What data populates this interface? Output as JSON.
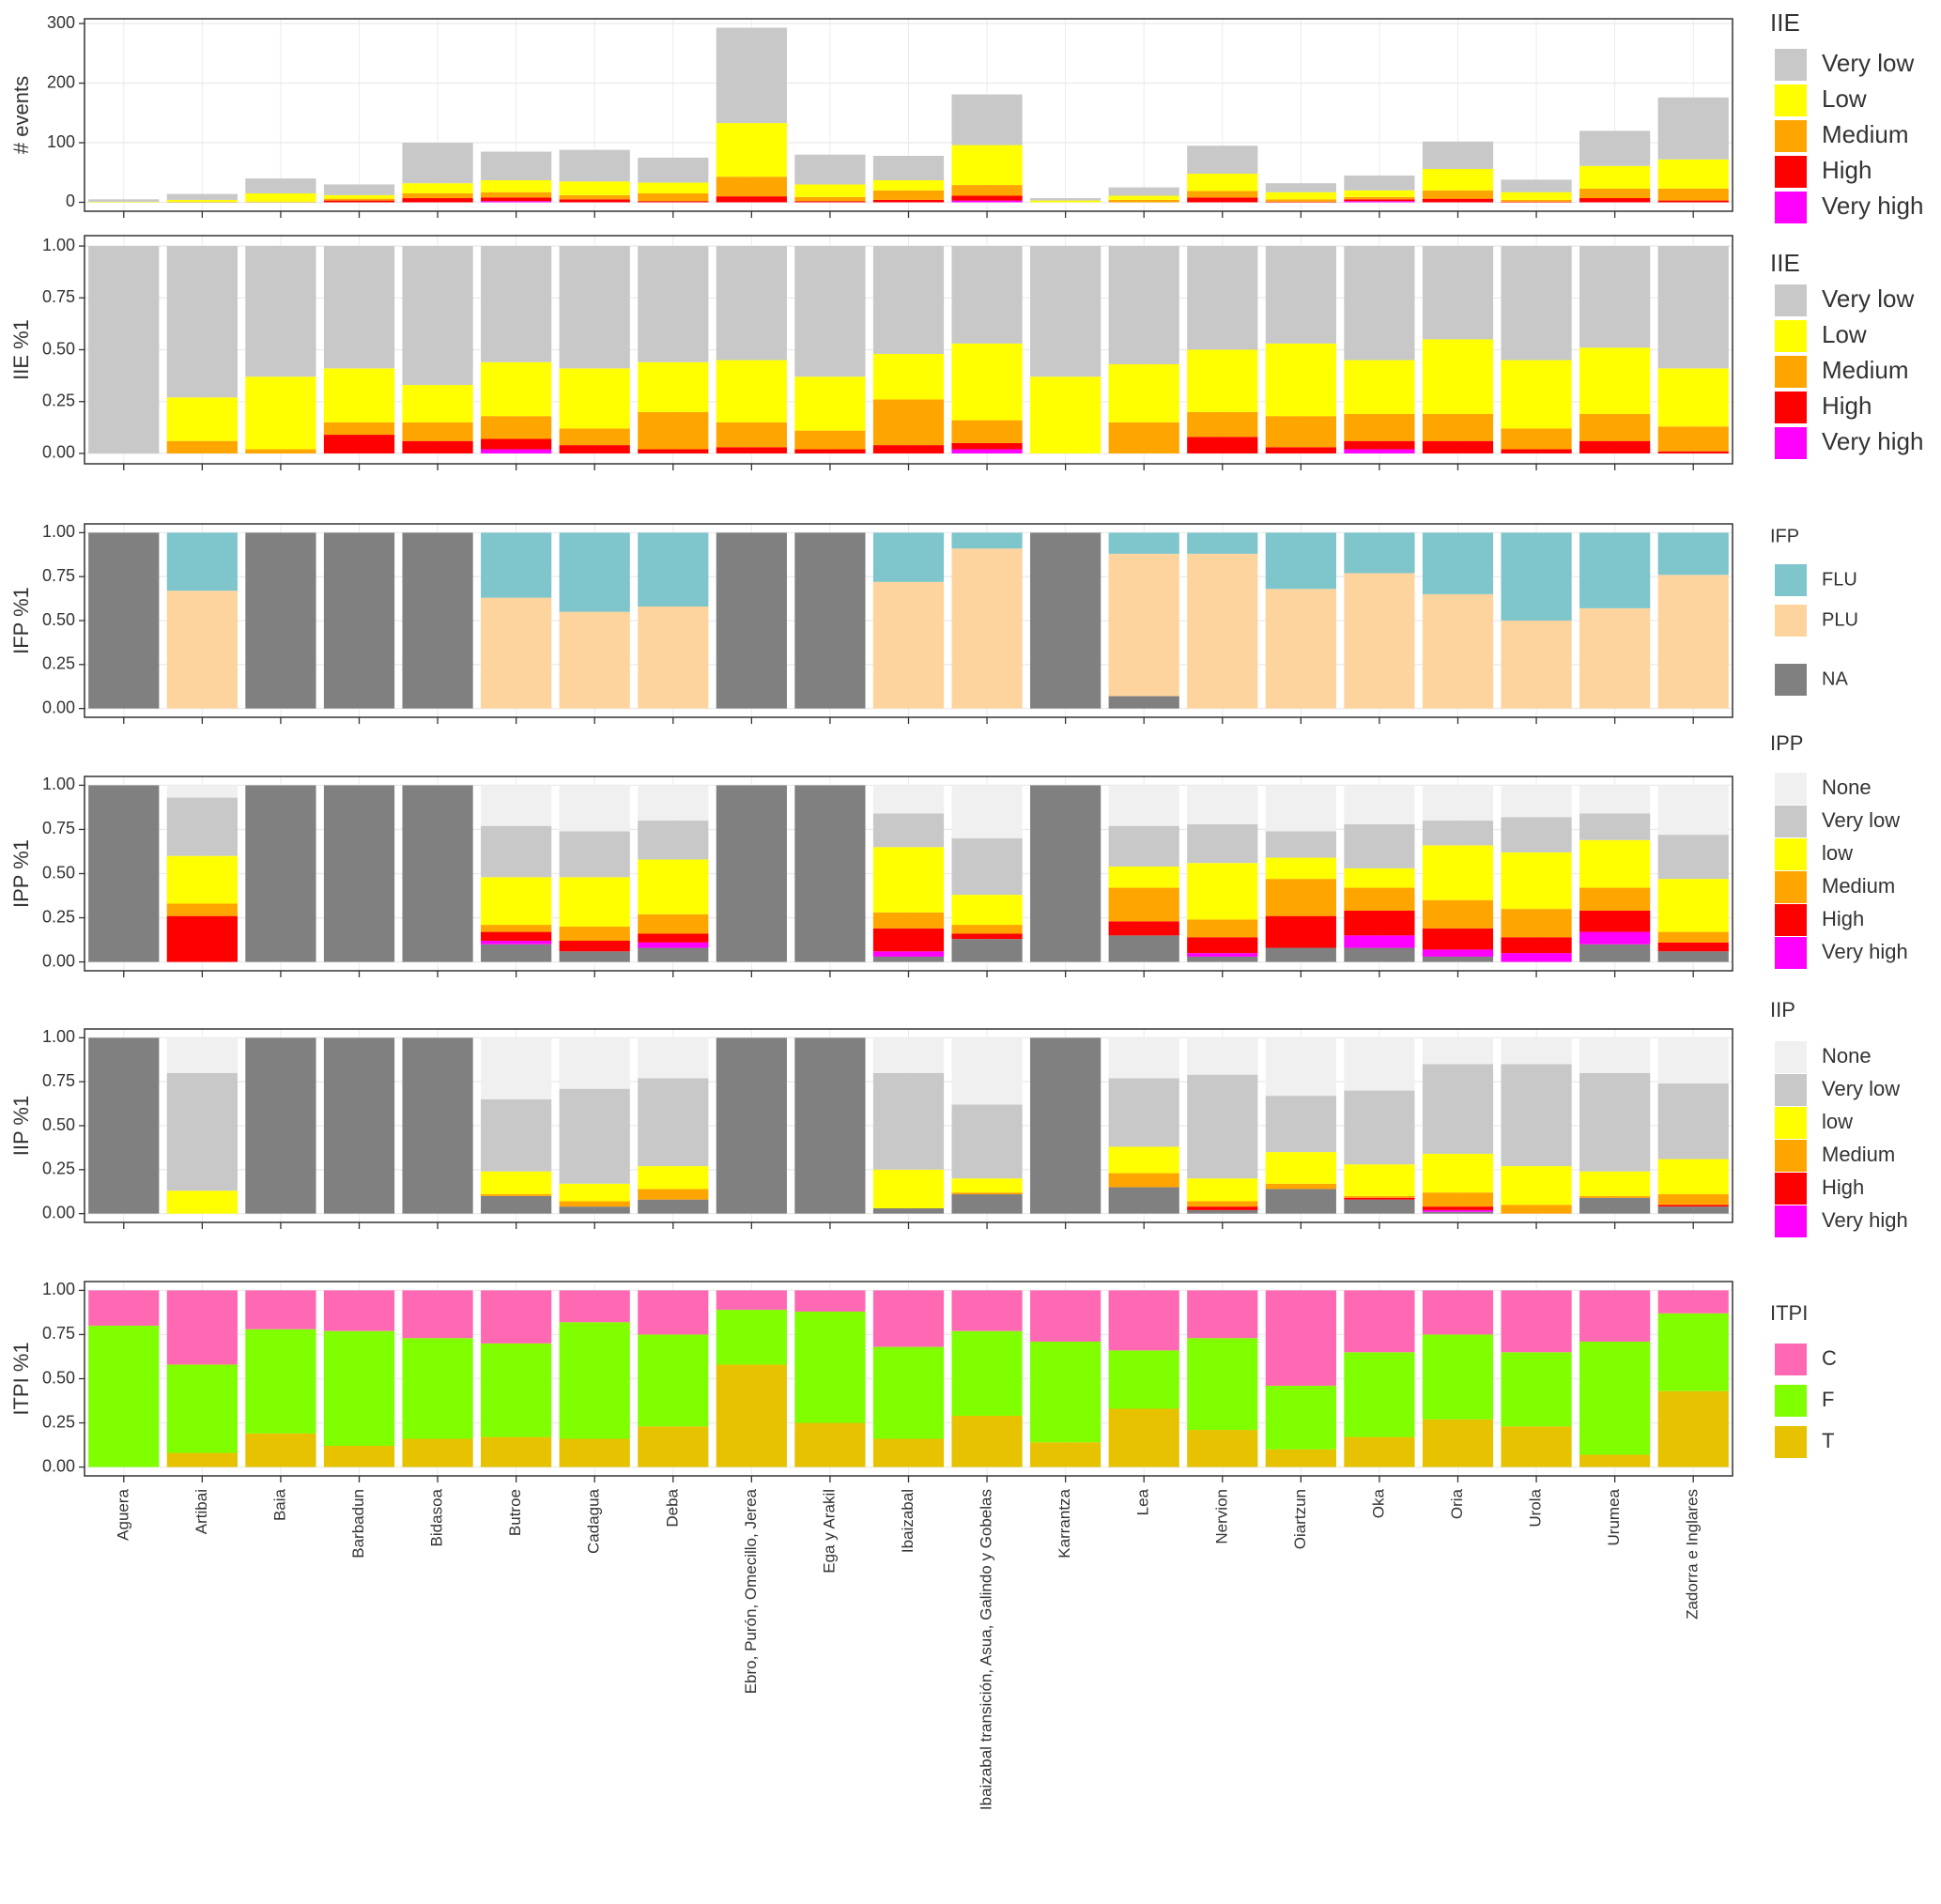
{
  "chart_data": [
    {
      "type": "bar",
      "stacked": true,
      "ylabel": "# events",
      "legend_title": "IIE",
      "grid": true,
      "ylim": [
        -15,
        308
      ],
      "yticks": [
        0,
        100,
        200,
        300
      ],
      "series": [
        {
          "name": "Very low",
          "color": "#c8c8c8",
          "values": [
            4,
            10,
            25,
            18,
            68,
            48,
            53,
            42,
            160,
            50,
            41,
            85,
            4,
            14,
            47,
            15,
            25,
            46,
            21,
            59,
            104
          ]
        },
        {
          "name": "Low",
          "color": "#ffff00",
          "values": [
            1,
            3,
            14,
            6,
            17,
            20,
            23,
            18,
            90,
            21,
            17,
            67,
            3,
            7,
            29,
            12,
            11,
            36,
            13,
            38,
            49
          ]
        },
        {
          "name": "Medium",
          "color": "#ffa500",
          "values": [
            0,
            1,
            1,
            3,
            8,
            9,
            7,
            13,
            33,
            7,
            16,
            18,
            0,
            4,
            11,
            4,
            4,
            14,
            3,
            16,
            20
          ]
        },
        {
          "name": "High",
          "color": "#ff0000",
          "values": [
            0,
            0,
            0,
            3,
            7,
            6,
            5,
            2,
            10,
            2,
            4,
            8,
            0,
            0,
            8,
            1,
            3,
            6,
            1,
            7,
            3
          ]
        },
        {
          "name": "Very high",
          "color": "#ff00ff",
          "values": [
            0,
            0,
            0,
            0,
            0,
            2,
            0,
            0,
            0,
            0,
            0,
            3,
            0,
            0,
            0,
            0,
            2,
            0,
            0,
            0,
            0
          ]
        }
      ]
    },
    {
      "type": "bar",
      "stacked": true,
      "ylabel": "IIE %1",
      "legend_title": "IIE",
      "grid": true,
      "ylim": [
        -0.05,
        1.05
      ],
      "yticks": [
        {
          "value": 0,
          "label": "0.00"
        },
        {
          "value": 0.25,
          "label": "0.25"
        },
        {
          "value": 0.5,
          "label": "0.50"
        },
        {
          "value": 0.75,
          "label": "0.75"
        },
        {
          "value": 1,
          "label": "1.00"
        }
      ],
      "series": [
        {
          "name": "Very low",
          "color": "#c8c8c8",
          "values": [
            1,
            0.73,
            0.63,
            0.59,
            0.67,
            0.56,
            0.59,
            0.56,
            0.55,
            0.63,
            0.52,
            0.47,
            0.63,
            0.57,
            0.5,
            0.47,
            0.55,
            0.45,
            0.55,
            0.49,
            0.59
          ]
        },
        {
          "name": "Low",
          "color": "#ffff00",
          "values": [
            0,
            0.21,
            0.35,
            0.26,
            0.18,
            0.26,
            0.29,
            0.24,
            0.3,
            0.26,
            0.22,
            0.37,
            0.37,
            0.28,
            0.3,
            0.35,
            0.26,
            0.36,
            0.33,
            0.32,
            0.28
          ]
        },
        {
          "name": "Medium",
          "color": "#ffa500",
          "values": [
            0,
            0.06,
            0.02,
            0.06,
            0.09,
            0.11,
            0.08,
            0.18,
            0.12,
            0.09,
            0.22,
            0.11,
            0,
            0.15,
            0.12,
            0.15,
            0.13,
            0.13,
            0.1,
            0.13,
            0.12
          ]
        },
        {
          "name": "High",
          "color": "#ff0000",
          "values": [
            0,
            0,
            0,
            0.09,
            0.06,
            0.05,
            0.04,
            0.02,
            0.03,
            0.02,
            0.04,
            0.03,
            0,
            0,
            0.08,
            0.03,
            0.04,
            0.06,
            0.02,
            0.06,
            0.01
          ]
        },
        {
          "name": "Very high",
          "color": "#ff00ff",
          "values": [
            0,
            0,
            0,
            0,
            0,
            0.02,
            0,
            0,
            0,
            0,
            0,
            0.02,
            0,
            0,
            0,
            0,
            0.02,
            0,
            0,
            0,
            0
          ]
        }
      ]
    },
    {
      "type": "bar",
      "stacked": true,
      "ylabel": "IFP %1",
      "legend_title": "IFP",
      "grid": true,
      "ylim": [
        -0.05,
        1.05
      ],
      "yticks": [
        {
          "value": 0,
          "label": "0.00"
        },
        {
          "value": 0.25,
          "label": "0.25"
        },
        {
          "value": 0.5,
          "label": "0.50"
        },
        {
          "value": 0.75,
          "label": "0.75"
        },
        {
          "value": 1,
          "label": "1.00"
        }
      ],
      "series": [
        {
          "name": "FLU",
          "color": "#7ec6cc",
          "values": [
            0,
            0.33,
            0,
            0,
            0,
            0.37,
            0.45,
            0.42,
            0,
            0,
            0.28,
            0.09,
            0,
            0.12,
            0.12,
            0.32,
            0.23,
            0.35,
            0.5,
            0.43,
            0.24
          ]
        },
        {
          "name": "PLU",
          "color": "#fdd49e",
          "values": [
            0,
            0.67,
            0,
            0,
            0,
            0.63,
            0.55,
            0.58,
            0,
            0,
            0.72,
            0.91,
            0,
            0.81,
            0.88,
            0.68,
            0.77,
            0.65,
            0.5,
            0.57,
            0.76
          ]
        },
        {
          "name": "NA",
          "color": "#808080",
          "values": [
            1,
            0,
            1,
            1,
            1,
            0,
            0,
            0,
            1,
            1,
            0,
            0,
            1,
            0.07,
            0,
            0,
            0,
            0,
            0,
            0,
            0
          ]
        }
      ]
    },
    {
      "type": "bar",
      "stacked": true,
      "ylabel": "IPP %1",
      "legend_title": "IPP",
      "grid": true,
      "ylim": [
        -0.05,
        1.05
      ],
      "yticks": [
        {
          "value": 0,
          "label": "0.00"
        },
        {
          "value": 0.25,
          "label": "0.25"
        },
        {
          "value": 0.5,
          "label": "0.50"
        },
        {
          "value": 0.75,
          "label": "0.75"
        },
        {
          "value": 1,
          "label": "1.00"
        }
      ],
      "series": [
        {
          "name": "None",
          "color": "#f0f0f0",
          "values": [
            0,
            0.07,
            0,
            0,
            0,
            0.23,
            0.26,
            0.2,
            0,
            0,
            0.16,
            0.3,
            0,
            0.23,
            0.22,
            0.26,
            0.22,
            0.2,
            0.18,
            0.16,
            0.28
          ]
        },
        {
          "name": "Very low",
          "color": "#c8c8c8",
          "values": [
            0,
            0.33,
            0,
            0,
            0,
            0.29,
            0.26,
            0.22,
            0,
            0,
            0.19,
            0.32,
            0,
            0.23,
            0.22,
            0.15,
            0.25,
            0.14,
            0.2,
            0.15,
            0.25
          ]
        },
        {
          "name": "low",
          "color": "#ffff00",
          "values": [
            0,
            0.27,
            0,
            0,
            0,
            0.27,
            0.28,
            0.31,
            0,
            0,
            0.37,
            0.17,
            0,
            0.12,
            0.32,
            0.12,
            0.11,
            0.31,
            0.32,
            0.27,
            0.3
          ]
        },
        {
          "name": "Medium",
          "color": "#ffa500",
          "values": [
            0,
            0.07,
            0,
            0,
            0,
            0.04,
            0.08,
            0.11,
            0,
            0,
            0.09,
            0.05,
            0,
            0.19,
            0.1,
            0.21,
            0.13,
            0.16,
            0.16,
            0.13,
            0.06
          ]
        },
        {
          "name": "High",
          "color": "#ff0000",
          "values": [
            0,
            0.26,
            0,
            0,
            0,
            0.05,
            0.06,
            0.05,
            0,
            0,
            0.13,
            0.03,
            0,
            0.08,
            0.09,
            0.18,
            0.14,
            0.12,
            0.09,
            0.12,
            0.05
          ]
        },
        {
          "name": "Very high",
          "color": "#ff00ff",
          "values": [
            0,
            0,
            0,
            0,
            0,
            0.02,
            0,
            0.03,
            0,
            0,
            0.03,
            0,
            0,
            0,
            0.02,
            0,
            0.07,
            0.04,
            0.05,
            0.07,
            0
          ]
        },
        {
          "color": "#808080",
          "values": [
            1,
            0,
            1,
            1,
            1,
            0.1,
            0.06,
            0.08,
            1,
            1,
            0.03,
            0.13,
            1,
            0.15,
            0.03,
            0.08,
            0.08,
            0.03,
            0,
            0.1,
            0.06
          ]
        }
      ]
    },
    {
      "type": "bar",
      "stacked": true,
      "ylabel": "IIP %1",
      "legend_title": "IIP",
      "grid": true,
      "ylim": [
        -0.05,
        1.05
      ],
      "yticks": [
        {
          "value": 0,
          "label": "0.00"
        },
        {
          "value": 0.25,
          "label": "0.25"
        },
        {
          "value": 0.5,
          "label": "0.50"
        },
        {
          "value": 0.75,
          "label": "0.75"
        },
        {
          "value": 1,
          "label": "1.00"
        }
      ],
      "series": [
        {
          "name": "None",
          "color": "#f0f0f0",
          "values": [
            0,
            0.2,
            0,
            0,
            0,
            0.35,
            0.29,
            0.23,
            0,
            0,
            0.2,
            0.38,
            0,
            0.23,
            0.21,
            0.33,
            0.3,
            0.15,
            0.15,
            0.2,
            0.26
          ]
        },
        {
          "name": "Very low",
          "color": "#c8c8c8",
          "values": [
            0,
            0.67,
            0,
            0,
            0,
            0.41,
            0.54,
            0.5,
            0,
            0,
            0.55,
            0.42,
            0,
            0.39,
            0.59,
            0.32,
            0.42,
            0.51,
            0.58,
            0.56,
            0.43
          ]
        },
        {
          "name": "low",
          "color": "#ffff00",
          "values": [
            0,
            0.13,
            0,
            0,
            0,
            0.13,
            0.1,
            0.13,
            0,
            0,
            0.22,
            0.08,
            0,
            0.15,
            0.13,
            0.18,
            0.18,
            0.22,
            0.22,
            0.14,
            0.2
          ]
        },
        {
          "name": "Medium",
          "color": "#ffa500",
          "values": [
            0,
            0,
            0,
            0,
            0,
            0.01,
            0.03,
            0.06,
            0,
            0,
            0,
            0.01,
            0,
            0.08,
            0.03,
            0.03,
            0.01,
            0.08,
            0.05,
            0.01,
            0.06
          ]
        },
        {
          "name": "High",
          "color": "#ff0000",
          "values": [
            0,
            0,
            0,
            0,
            0,
            0,
            0,
            0,
            0,
            0,
            0,
            0,
            0,
            0,
            0.02,
            0,
            0.01,
            0.02,
            0,
            0,
            0.01
          ]
        },
        {
          "name": "Very high",
          "color": "#ff00ff",
          "values": [
            0,
            0,
            0,
            0,
            0,
            0,
            0,
            0,
            0,
            0,
            0,
            0,
            0,
            0,
            0,
            0,
            0,
            0.01,
            0,
            0,
            0
          ]
        },
        {
          "color": "#808080",
          "values": [
            1,
            0,
            1,
            1,
            1,
            0.1,
            0.04,
            0.08,
            1,
            1,
            0.03,
            0.11,
            1,
            0.15,
            0.02,
            0.14,
            0.08,
            0.01,
            0,
            0.09,
            0.04
          ]
        }
      ]
    },
    {
      "type": "bar",
      "stacked": true,
      "ylabel": "ITPI %1",
      "legend_title": "ITPI",
      "grid": true,
      "categories": [
        "Aguera",
        "Artibai",
        "Baia",
        "Barbadun",
        "Bidasoa",
        "Butroe",
        "Cadagua",
        "Deba",
        "Ebro, Purón, Omecillo, Jerea",
        "Ega y Arakil",
        "Ibaizabal",
        "Ibaizabal transición, Asua, Galindo y Gobelas",
        "Karrantza",
        "Lea",
        "Nervion",
        "Oiartzun",
        "Oka",
        "Oria",
        "Urola",
        "Urumea",
        "Zadorra e Inglares"
      ],
      "ylim": [
        -0.05,
        1.05
      ],
      "yticks": [
        {
          "value": 0,
          "label": "0.00"
        },
        {
          "value": 0.25,
          "label": "0.25"
        },
        {
          "value": 0.5,
          "label": "0.50"
        },
        {
          "value": 0.75,
          "label": "0.75"
        },
        {
          "value": 1,
          "label": "1.00"
        }
      ],
      "series": [
        {
          "name": "C",
          "color": "#ff69b4",
          "values": [
            0.2,
            0.42,
            0.22,
            0.23,
            0.27,
            0.3,
            0.18,
            0.25,
            0.11,
            0.12,
            0.32,
            0.23,
            0.29,
            0.34,
            0.27,
            0.54,
            0.35,
            0.25,
            0.35,
            0.29,
            0.13
          ]
        },
        {
          "name": "F",
          "color": "#7fff00",
          "values": [
            0.8,
            0.5,
            0.59,
            0.65,
            0.57,
            0.53,
            0.66,
            0.52,
            0.31,
            0.63,
            0.52,
            0.48,
            0.57,
            0.33,
            0.52,
            0.36,
            0.48,
            0.48,
            0.42,
            0.64,
            0.44
          ]
        },
        {
          "name": "T",
          "color": "#e6c200",
          "values": [
            0,
            0.08,
            0.19,
            0.12,
            0.16,
            0.17,
            0.16,
            0.23,
            0.58,
            0.25,
            0.16,
            0.29,
            0.14,
            0.33,
            0.21,
            0.1,
            0.17,
            0.27,
            0.23,
            0.07,
            0.43
          ]
        }
      ]
    }
  ]
}
